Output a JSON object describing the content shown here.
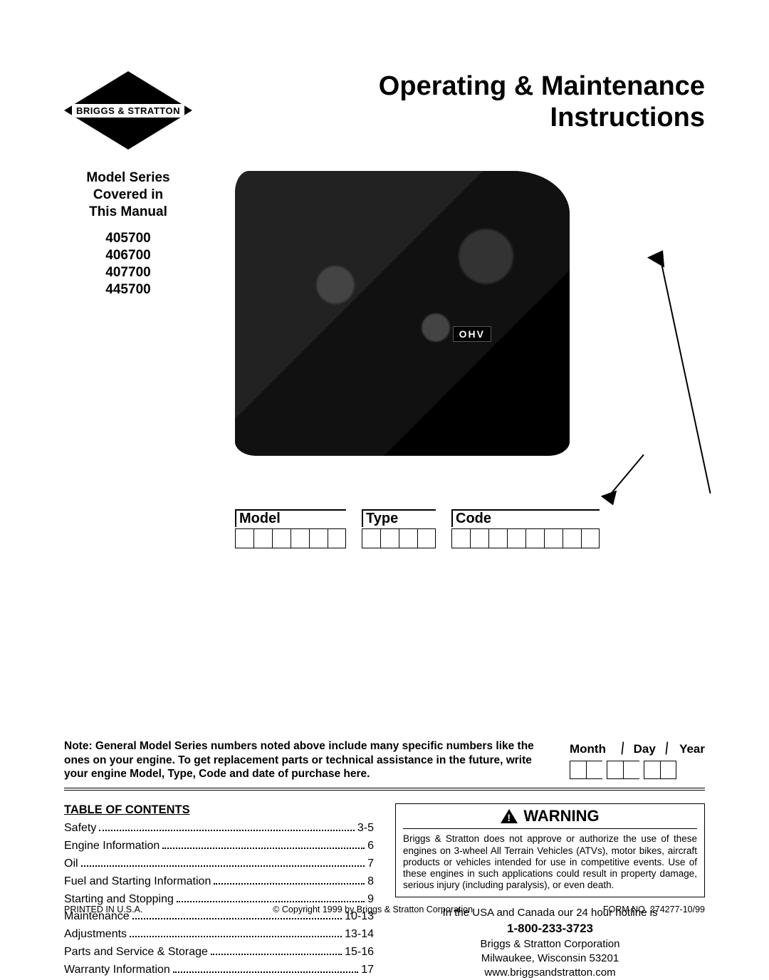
{
  "logo": {
    "brand": "BRIGGS & STRATTON",
    "registered": "®"
  },
  "title": {
    "line1": "Operating & Maintenance",
    "line2": "Instructions"
  },
  "model_series": {
    "heading_l1": "Model Series",
    "heading_l2": "Covered in",
    "heading_l3": "This Manual",
    "models": [
      "405700",
      "406700",
      "407700",
      "445700"
    ]
  },
  "engine": {
    "ohv_label": "OHV"
  },
  "id_fields": {
    "model": {
      "label": "Model",
      "boxes": 6
    },
    "type": {
      "label": "Type",
      "boxes": 4
    },
    "code": {
      "label": "Code",
      "boxes": 8
    }
  },
  "note": "Note: General Model Series numbers noted above include many specific numbers like the ones on your engine. To get replacement parts or technical assistance in the future, write your engine Model, Type, Code and date of purchase here.",
  "date": {
    "month": "Month",
    "day": "Day",
    "year": "Year"
  },
  "toc": {
    "heading": "TABLE OF CONTENTS",
    "items": [
      {
        "label": "Safety",
        "page": "3-5"
      },
      {
        "label": "Engine Information",
        "page": "6"
      },
      {
        "label": "Oil",
        "page": "7"
      },
      {
        "label": "Fuel and Starting Information",
        "page": "8"
      },
      {
        "label": "Starting and Stopping",
        "page": "9"
      },
      {
        "label": "Maintenance",
        "page": "10-13"
      },
      {
        "label": "Adjustments",
        "page": "13-14"
      },
      {
        "label": "Parts and Service & Storage",
        "page": "15-16"
      },
      {
        "label": "Warranty Information",
        "page": "17"
      }
    ]
  },
  "warning": {
    "title": "WARNING",
    "body": "Briggs & Stratton does not approve or authorize the use of these engines on 3-wheel All Terrain Vehicles (ATVs), motor bikes, aircraft products or vehicles intended for use in competitive events. Use of these engines in such applications could result in property damage, serious injury (including paralysis), or even death."
  },
  "contact": {
    "hotline_intro": "In the USA and Canada our 24 hour hotline is",
    "hotline_number": "1-800-233-3723",
    "corp": "Briggs & Stratton Corporation",
    "address": "Milwaukee, Wisconsin 53201",
    "website": "www.briggsandstratton.com"
  },
  "footer": {
    "left": "PRINTED IN U.S.A.",
    "center": "© Copyright 1999 by Briggs & Stratton Corporation",
    "right": "FORM NO. 274277-10/99"
  }
}
